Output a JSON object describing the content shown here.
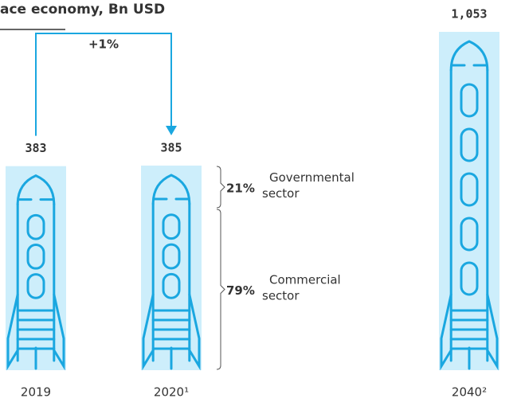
{
  "chart_data": {
    "type": "bar",
    "title": "ace economy, Bn USD",
    "categories": [
      "2019",
      "2020¹",
      "2040²"
    ],
    "values": [
      383,
      385,
      1053
    ],
    "value_labels": [
      "383",
      "385",
      "1,053"
    ],
    "color": "#cdeefb",
    "outline_color": "#1aa7e0",
    "growth": {
      "value": 1,
      "label": "+1%"
    },
    "segments": [
      {
        "name": "Governmental sector",
        "value": 21,
        "label": "21%",
        "color": "#1aa7e0"
      },
      {
        "name": "Commercial sector",
        "value": 79,
        "label": "79%",
        "color": "#1b5e7e"
      }
    ]
  }
}
